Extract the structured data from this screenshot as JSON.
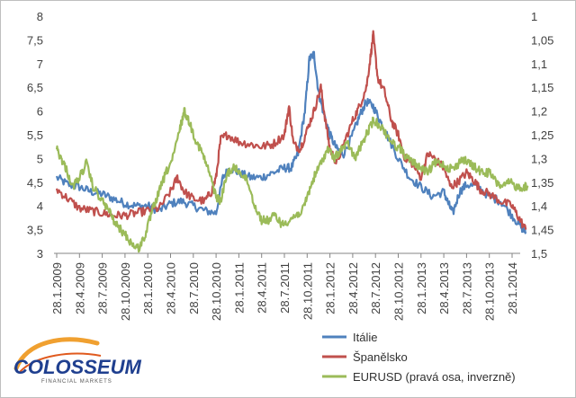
{
  "chart_data": {
    "type": "line",
    "title": "",
    "left_axis": {
      "min": 3,
      "max": 8,
      "ticks": [
        "3",
        "3,5",
        "4",
        "4,5",
        "5",
        "5,5",
        "6",
        "6,5",
        "7",
        "7,5",
        "8"
      ]
    },
    "right_axis": {
      "min": 1,
      "max": 1.5,
      "inverted": true,
      "ticks": [
        "1",
        "1,05",
        "1,1",
        "1,15",
        "1,2",
        "1,25",
        "1,3",
        "1,35",
        "1,4",
        "1,45",
        "1,5"
      ]
    },
    "x_labels": [
      "28.1.2009",
      "28.4.2009",
      "28.7.2009",
      "28.10.2009",
      "28.1.2010",
      "28.4.2010",
      "28.7.2010",
      "28.10.2010",
      "28.1.2011",
      "28.4.2011",
      "28.7.2011",
      "28.10.2011",
      "28.1.2012",
      "28.4.2012",
      "28.7.2012",
      "28.10.2012",
      "28.1.2013",
      "28.4.2013",
      "28.7.2013",
      "28.10.2013",
      "28.1.2014"
    ],
    "series": [
      {
        "name": "Itálie",
        "axis": "left",
        "color": "#4f81bd",
        "points": [
          [
            0,
            4.6
          ],
          [
            0.5,
            4.45
          ],
          [
            1,
            4.4
          ],
          [
            1.5,
            4.3
          ],
          [
            2,
            4.25
          ],
          [
            2.5,
            4.15
          ],
          [
            3,
            4.05
          ],
          [
            3.5,
            4.0
          ],
          [
            4,
            4.0
          ],
          [
            4.5,
            3.9
          ],
          [
            5,
            4.05
          ],
          [
            5.5,
            4.1
          ],
          [
            6,
            4.0
          ],
          [
            6.5,
            3.9
          ],
          [
            7,
            3.85
          ],
          [
            7.3,
            4.6
          ],
          [
            7.6,
            4.8
          ],
          [
            8,
            4.7
          ],
          [
            8.5,
            4.6
          ],
          [
            9,
            4.6
          ],
          [
            9.5,
            4.7
          ],
          [
            10,
            4.8
          ],
          [
            10.3,
            4.8
          ],
          [
            10.6,
            5.1
          ],
          [
            10.9,
            6.0
          ],
          [
            11.1,
            7.1
          ],
          [
            11.3,
            7.2
          ],
          [
            11.5,
            6.4
          ],
          [
            11.7,
            6.0
          ],
          [
            12,
            5.5
          ],
          [
            12.3,
            5.2
          ],
          [
            12.6,
            5.1
          ],
          [
            13,
            5.5
          ],
          [
            13.3,
            5.9
          ],
          [
            13.6,
            6.2
          ],
          [
            13.9,
            6.1
          ],
          [
            14.2,
            5.8
          ],
          [
            14.5,
            5.5
          ],
          [
            15,
            5.0
          ],
          [
            15.5,
            4.6
          ],
          [
            16,
            4.4
          ],
          [
            16.5,
            4.2
          ],
          [
            17,
            4.3
          ],
          [
            17.2,
            4.05
          ],
          [
            17.4,
            3.85
          ],
          [
            17.7,
            4.3
          ],
          [
            18,
            4.45
          ],
          [
            18.5,
            4.4
          ],
          [
            19,
            4.2
          ],
          [
            19.5,
            4.1
          ],
          [
            20,
            3.8
          ],
          [
            20.4,
            3.55
          ],
          [
            20.6,
            3.45
          ]
        ]
      },
      {
        "name": "Španělsko",
        "axis": "left",
        "color": "#c0504d",
        "points": [
          [
            0,
            4.35
          ],
          [
            0.5,
            4.15
          ],
          [
            1,
            3.95
          ],
          [
            1.5,
            3.9
          ],
          [
            2,
            3.85
          ],
          [
            2.5,
            3.8
          ],
          [
            3,
            3.8
          ],
          [
            3.5,
            3.85
          ],
          [
            4,
            3.9
          ],
          [
            4.5,
            3.95
          ],
          [
            5,
            4.3
          ],
          [
            5.3,
            4.6
          ],
          [
            5.6,
            4.3
          ],
          [
            6,
            4.15
          ],
          [
            6.5,
            4.1
          ],
          [
            6.8,
            4.3
          ],
          [
            7,
            4.6
          ],
          [
            7.2,
            5.4
          ],
          [
            7.5,
            5.5
          ],
          [
            8,
            5.35
          ],
          [
            8.5,
            5.3
          ],
          [
            9,
            5.25
          ],
          [
            9.5,
            5.3
          ],
          [
            10,
            5.5
          ],
          [
            10.2,
            6.1
          ],
          [
            10.4,
            5.3
          ],
          [
            10.7,
            5.2
          ],
          [
            11,
            5.6
          ],
          [
            11.3,
            6.0
          ],
          [
            11.6,
            6.5
          ],
          [
            11.8,
            5.8
          ],
          [
            12,
            5.2
          ],
          [
            12.3,
            4.9
          ],
          [
            12.6,
            5.3
          ],
          [
            13,
            5.8
          ],
          [
            13.3,
            6.1
          ],
          [
            13.6,
            6.5
          ],
          [
            13.8,
            7.2
          ],
          [
            13.9,
            7.6
          ],
          [
            14.1,
            6.7
          ],
          [
            14.4,
            6.4
          ],
          [
            14.7,
            5.8
          ],
          [
            15,
            5.5
          ],
          [
            15.3,
            5.0
          ],
          [
            15.6,
            4.9
          ],
          [
            16,
            4.6
          ],
          [
            16.3,
            5.1
          ],
          [
            16.6,
            5.0
          ],
          [
            17,
            4.8
          ],
          [
            17.3,
            4.4
          ],
          [
            17.6,
            4.5
          ],
          [
            18,
            4.7
          ],
          [
            18.3,
            4.55
          ],
          [
            18.6,
            4.35
          ],
          [
            19,
            4.25
          ],
          [
            19.5,
            4.1
          ],
          [
            20,
            4.0
          ],
          [
            20.3,
            3.75
          ],
          [
            20.6,
            3.5
          ]
        ]
      },
      {
        "name": "EURUSD (pravá osa, inverzně)",
        "axis": "right",
        "color": "#9bbb59",
        "points": [
          [
            0,
            1.28
          ],
          [
            0.2,
            1.3
          ],
          [
            0.4,
            1.32
          ],
          [
            0.7,
            1.36
          ],
          [
            1,
            1.34
          ],
          [
            1.3,
            1.31
          ],
          [
            1.6,
            1.36
          ],
          [
            2,
            1.39
          ],
          [
            2.3,
            1.41
          ],
          [
            2.6,
            1.44
          ],
          [
            3,
            1.46
          ],
          [
            3.3,
            1.48
          ],
          [
            3.6,
            1.49
          ],
          [
            3.9,
            1.46
          ],
          [
            4.2,
            1.41
          ],
          [
            4.5,
            1.37
          ],
          [
            4.8,
            1.33
          ],
          [
            5.1,
            1.3
          ],
          [
            5.4,
            1.24
          ],
          [
            5.6,
            1.2
          ],
          [
            5.8,
            1.22
          ],
          [
            6.1,
            1.26
          ],
          [
            6.4,
            1.29
          ],
          [
            6.7,
            1.33
          ],
          [
            7,
            1.38
          ],
          [
            7.2,
            1.39
          ],
          [
            7.5,
            1.33
          ],
          [
            7.8,
            1.32
          ],
          [
            8.1,
            1.33
          ],
          [
            8.4,
            1.35
          ],
          [
            8.7,
            1.4
          ],
          [
            9,
            1.43
          ],
          [
            9.3,
            1.43
          ],
          [
            9.6,
            1.42
          ],
          [
            9.9,
            1.44
          ],
          [
            10.2,
            1.43
          ],
          [
            10.5,
            1.42
          ],
          [
            10.8,
            1.41
          ],
          [
            11,
            1.38
          ],
          [
            11.3,
            1.34
          ],
          [
            11.6,
            1.31
          ],
          [
            11.9,
            1.28
          ],
          [
            12.2,
            1.3
          ],
          [
            12.5,
            1.28
          ],
          [
            12.8,
            1.27
          ],
          [
            13.1,
            1.3
          ],
          [
            13.4,
            1.27
          ],
          [
            13.7,
            1.24
          ],
          [
            13.9,
            1.22
          ],
          [
            14.2,
            1.23
          ],
          [
            14.5,
            1.25
          ],
          [
            14.8,
            1.27
          ],
          [
            15.1,
            1.28
          ],
          [
            15.4,
            1.3
          ],
          [
            15.7,
            1.31
          ],
          [
            16,
            1.32
          ],
          [
            16.3,
            1.33
          ],
          [
            16.6,
            1.31
          ],
          [
            16.9,
            1.31
          ],
          [
            17.2,
            1.32
          ],
          [
            17.5,
            1.32
          ],
          [
            17.8,
            1.3
          ],
          [
            18.1,
            1.31
          ],
          [
            18.4,
            1.32
          ],
          [
            18.7,
            1.33
          ],
          [
            19,
            1.33
          ],
          [
            19.3,
            1.35
          ],
          [
            19.6,
            1.36
          ],
          [
            19.9,
            1.35
          ],
          [
            20.2,
            1.36
          ],
          [
            20.5,
            1.36
          ],
          [
            20.7,
            1.36
          ]
        ]
      }
    ],
    "legend_position": "bottom-right"
  },
  "logo": {
    "name": "COLOSSEUM",
    "tagline": "FINANCIAL MARKETS"
  }
}
